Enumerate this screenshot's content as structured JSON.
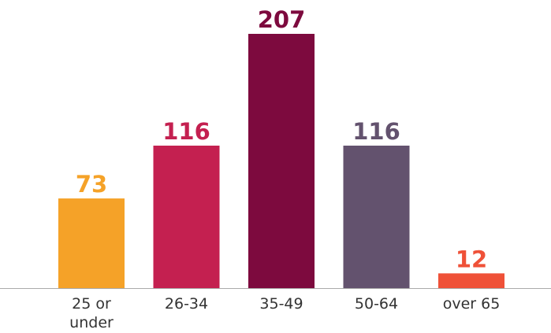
{
  "chart_data": {
    "type": "bar",
    "categories": [
      "25 or under",
      "26-34",
      "35-49",
      "50-64",
      "over 65"
    ],
    "values": [
      73,
      116,
      207,
      116,
      12
    ],
    "colors": [
      "#f5a228",
      "#c42050",
      "#7d0a3e",
      "#63526e",
      "#ef5138"
    ]
  }
}
